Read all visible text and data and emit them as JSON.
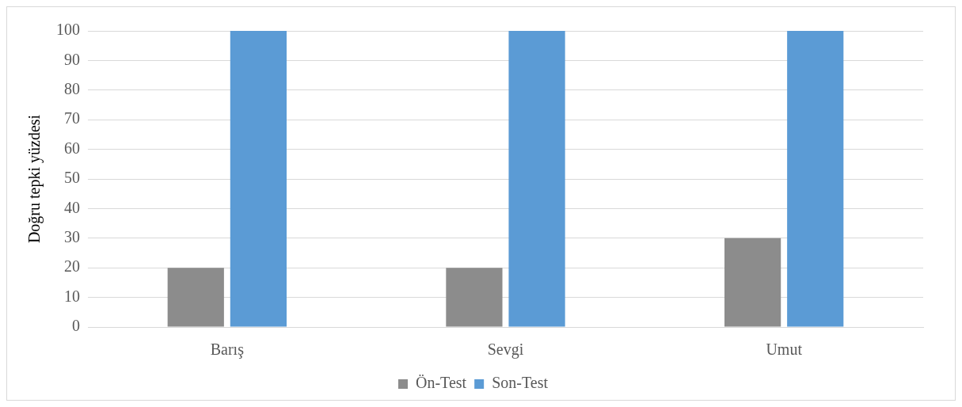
{
  "chart_data": {
    "type": "bar",
    "ylabel": "Doğru tepki yüzdesi",
    "categories": [
      "Barış",
      "Sevgi",
      "Umut"
    ],
    "series": [
      {
        "name": "Ön-Test",
        "color": "#8c8c8c",
        "values": [
          20,
          20,
          30
        ]
      },
      {
        "name": "Son-Test",
        "color": "#5b9bd5",
        "values": [
          100,
          100,
          100
        ]
      }
    ],
    "ylim": [
      0,
      100
    ],
    "yticks": [
      0,
      10,
      20,
      30,
      40,
      50,
      60,
      70,
      80,
      90,
      100
    ],
    "grid": "y",
    "legend": "bottom"
  }
}
